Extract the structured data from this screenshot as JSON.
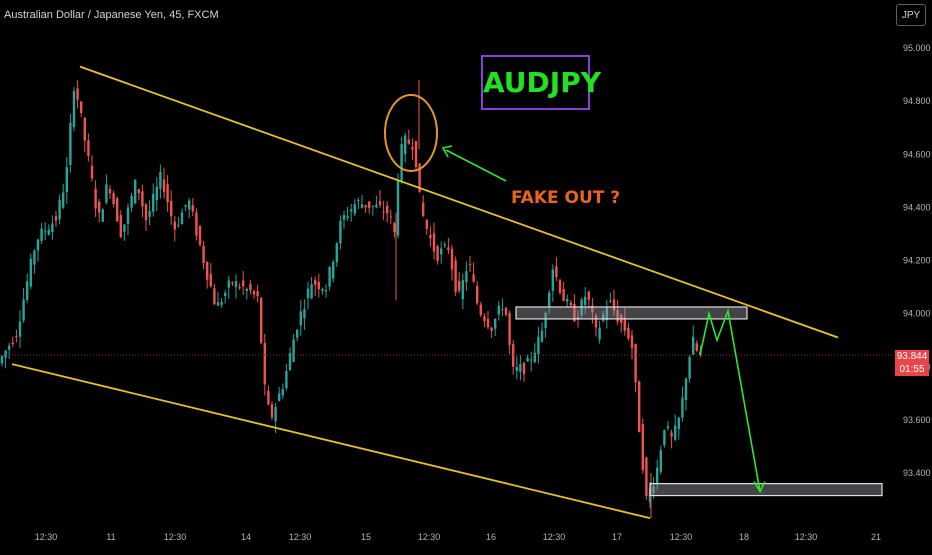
{
  "header": {
    "title": "Australian Dollar / Japanese Yen, 45, FXCM",
    "currency_button": "JPY"
  },
  "colors": {
    "background": "#000000",
    "up_candle": "#26a69a",
    "down_candle": "#ef5350",
    "channel_line": "#e6c229",
    "annotation_arrow": "#2ee62e",
    "fake_out_text": "#e8641f",
    "circle": "#e0962a",
    "title_box_border": "#8a3fd6",
    "title_box_text": "#22e022",
    "price_label_bg": "#e8444a"
  },
  "annotations": {
    "symbol_title": "AUDJPY",
    "fake_out_label": "FAKE OUT ?"
  },
  "price_label": {
    "price": "93.844",
    "countdown": "01:55"
  },
  "chart_data": {
    "type": "candlestick",
    "title": "AUDJPY",
    "ylim": [
      93.23,
      95.08
    ],
    "yticks": [
      "95.000",
      "94.800",
      "94.600",
      "94.400",
      "94.200",
      "94.000",
      "93.800",
      "93.600",
      "93.400"
    ],
    "xticks": [
      "12:30",
      "11",
      "12:30",
      "14",
      "12:30",
      "15",
      "12:30",
      "16",
      "12:30",
      "17",
      "12:30",
      "18",
      "12:30",
      "21"
    ],
    "last_price": 93.844,
    "grid": false,
    "waypoints": [
      {
        "x": 0,
        "p": 93.8
      },
      {
        "x": 20,
        "p": 93.93
      },
      {
        "x": 40,
        "p": 94.28
      },
      {
        "x": 60,
        "p": 94.36
      },
      {
        "x": 70,
        "p": 94.52
      },
      {
        "x": 78,
        "p": 94.88
      },
      {
        "x": 90,
        "p": 94.62
      },
      {
        "x": 102,
        "p": 94.35
      },
      {
        "x": 112,
        "p": 94.5
      },
      {
        "x": 125,
        "p": 94.3
      },
      {
        "x": 140,
        "p": 94.5
      },
      {
        "x": 150,
        "p": 94.35
      },
      {
        "x": 165,
        "p": 94.52
      },
      {
        "x": 178,
        "p": 94.32
      },
      {
        "x": 192,
        "p": 94.43
      },
      {
        "x": 206,
        "p": 94.22
      },
      {
        "x": 220,
        "p": 94.02
      },
      {
        "x": 235,
        "p": 94.12
      },
      {
        "x": 255,
        "p": 94.08
      },
      {
        "x": 262,
        "p": 94.05
      },
      {
        "x": 268,
        "p": 93.72
      },
      {
        "x": 274,
        "p": 93.6
      },
      {
        "x": 288,
        "p": 93.75
      },
      {
        "x": 300,
        "p": 93.95
      },
      {
        "x": 315,
        "p": 94.12
      },
      {
        "x": 330,
        "p": 94.1
      },
      {
        "x": 345,
        "p": 94.35
      },
      {
        "x": 360,
        "p": 94.42
      },
      {
        "x": 380,
        "p": 94.4
      },
      {
        "x": 392,
        "p": 94.38
      },
      {
        "x": 398,
        "p": 94.3
      },
      {
        "x": 402,
        "p": 94.55
      },
      {
        "x": 407,
        "p": 94.65
      },
      {
        "x": 418,
        "p": 94.64
      },
      {
        "x": 424,
        "p": 94.4
      },
      {
        "x": 432,
        "p": 94.3
      },
      {
        "x": 440,
        "p": 94.22
      },
      {
        "x": 452,
        "p": 94.25
      },
      {
        "x": 462,
        "p": 94.05
      },
      {
        "x": 472,
        "p": 94.2
      },
      {
        "x": 482,
        "p": 94.02
      },
      {
        "x": 495,
        "p": 93.95
      },
      {
        "x": 508,
        "p": 94.05
      },
      {
        "x": 516,
        "p": 93.78
      },
      {
        "x": 530,
        "p": 93.8
      },
      {
        "x": 545,
        "p": 93.92
      },
      {
        "x": 556,
        "p": 94.18
      },
      {
        "x": 568,
        "p": 94.05
      },
      {
        "x": 580,
        "p": 93.98
      },
      {
        "x": 590,
        "p": 94.08
      },
      {
        "x": 600,
        "p": 93.92
      },
      {
        "x": 612,
        "p": 94.05
      },
      {
        "x": 622,
        "p": 93.98
      },
      {
        "x": 635,
        "p": 93.9
      },
      {
        "x": 642,
        "p": 93.6
      },
      {
        "x": 650,
        "p": 93.3
      },
      {
        "x": 660,
        "p": 93.4
      },
      {
        "x": 668,
        "p": 93.58
      },
      {
        "x": 676,
        "p": 93.52
      },
      {
        "x": 684,
        "p": 93.62
      },
      {
        "x": 690,
        "p": 93.78
      },
      {
        "x": 696,
        "p": 93.9
      },
      {
        "x": 702,
        "p": 93.844
      }
    ],
    "channel_upper": [
      {
        "x": 80,
        "p": 94.93
      },
      {
        "x": 838,
        "p": 93.91
      }
    ],
    "channel_lower": [
      {
        "x": 12,
        "p": 93.81
      },
      {
        "x": 650,
        "p": 93.23
      }
    ],
    "resistance_zone": {
      "x1": 516,
      "x2": 747,
      "top": 94.025,
      "bottom": 93.98
    },
    "support_zone": {
      "x1": 650,
      "x2": 882,
      "top": 93.36,
      "bottom": 93.315
    },
    "projection": [
      {
        "x": 700,
        "p": 93.844
      },
      {
        "x": 709,
        "p": 94.0
      },
      {
        "x": 717,
        "p": 93.9
      },
      {
        "x": 728,
        "p": 94.01
      },
      {
        "x": 760,
        "p": 93.33
      }
    ]
  }
}
